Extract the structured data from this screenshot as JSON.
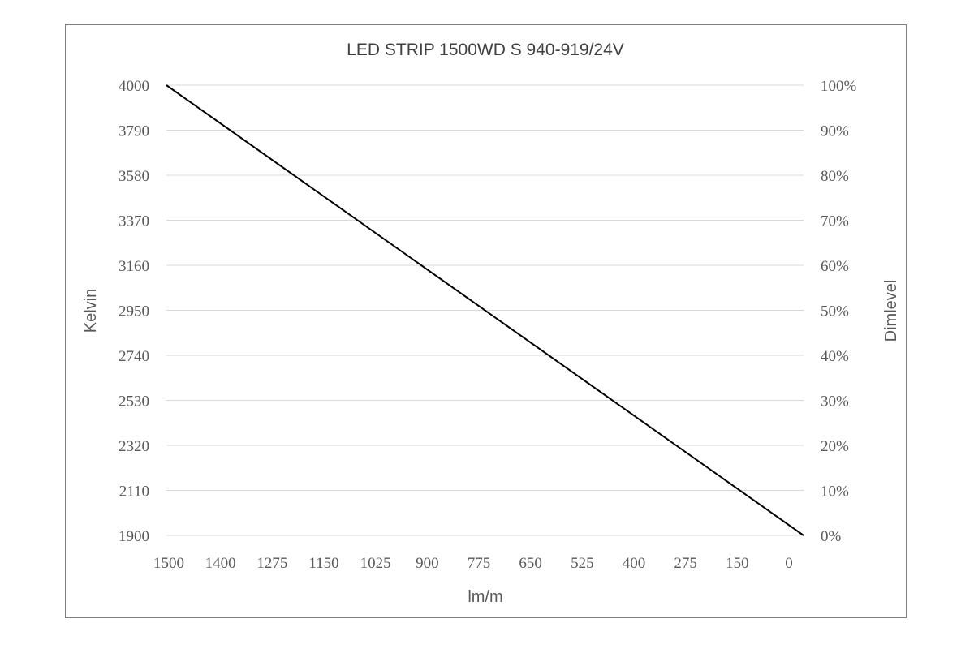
{
  "chart_data": {
    "type": "line",
    "title": "LED STRIP 1500WD S 940-919/24V",
    "xlabel": "lm/m",
    "ylabel": "Kelvin",
    "y2label": "Dimlevel",
    "x_ticks": [
      "1500",
      "1400",
      "1275",
      "1150",
      "1025",
      "900",
      "775",
      "650",
      "525",
      "400",
      "275",
      "150",
      "0"
    ],
    "y_ticks": [
      "4000",
      "3790",
      "3580",
      "3370",
      "3160",
      "2950",
      "2740",
      "2530",
      "2320",
      "2110",
      "1900"
    ],
    "y2_ticks": [
      "100%",
      "90%",
      "80%",
      "70%",
      "60%",
      "50%",
      "40%",
      "30%",
      "20%",
      "10%",
      "0%"
    ],
    "ylim": [
      1900,
      4000
    ],
    "y2lim": [
      0,
      100
    ],
    "grid": true,
    "legend": "none",
    "series": [
      {
        "x": [
          "1500",
          "0"
        ],
        "values": [
          4000,
          1900
        ],
        "color": "#000000"
      }
    ]
  }
}
